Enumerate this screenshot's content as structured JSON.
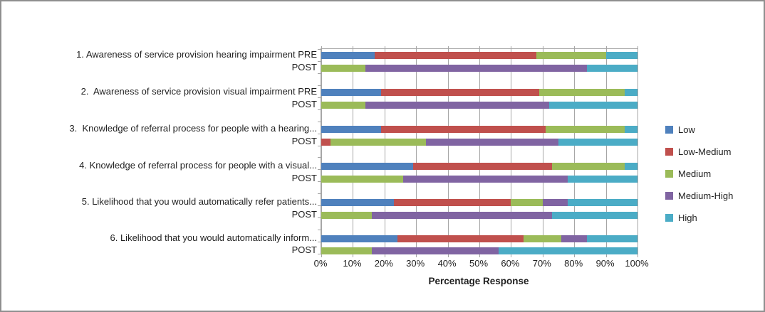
{
  "chart_data": {
    "type": "bar",
    "orientation": "horizontal",
    "stacked": true,
    "grid": true,
    "legend_position": "right",
    "xlabel": "Percentage Response",
    "xlim": [
      0,
      100
    ],
    "x_ticks": [
      "0%",
      "10%",
      "20%",
      "30%",
      "40%",
      "50%",
      "60%",
      "70%",
      "80%",
      "90%",
      "100%"
    ],
    "series": [
      {
        "name": "Low",
        "color": "#4F81BD"
      },
      {
        "name": "Low-Medium",
        "color": "#C0504D"
      },
      {
        "name": "Medium",
        "color": "#9BBB59"
      },
      {
        "name": "Medium-High",
        "color": "#8064A2"
      },
      {
        "name": "High",
        "color": "#4BACC6"
      }
    ],
    "series_order_note": "values arrays follow series order: Low, Low-Medium, Medium, Medium-High, High (percent of responses)",
    "groups": [
      {
        "pre_label": "1. Awareness of service provision hearing impairment PRE",
        "post_label": "POST",
        "pre_values": [
          17,
          51,
          22,
          0,
          10
        ],
        "post_values": [
          0,
          0,
          14,
          70,
          16
        ]
      },
      {
        "pre_label": "2.  Awareness of service provision visual impairment PRE",
        "post_label": "POST",
        "pre_values": [
          19,
          50,
          27,
          0,
          4
        ],
        "post_values": [
          0,
          0,
          14,
          58,
          28
        ]
      },
      {
        "pre_label": "3.  Knowledge of referral process for people with a hearing...",
        "post_label": "POST",
        "pre_values": [
          19,
          52,
          25,
          0,
          4
        ],
        "post_values": [
          0,
          3,
          30,
          42,
          25
        ]
      },
      {
        "pre_label": "4. Knowledge of referral process for people with a visual...",
        "post_label": "POST",
        "pre_values": [
          29,
          44,
          23,
          0,
          4
        ],
        "post_values": [
          0,
          0,
          26,
          52,
          22
        ]
      },
      {
        "pre_label": "5. Likelihood that you would automatically refer patients...",
        "post_label": "POST",
        "pre_values": [
          23,
          37,
          10,
          8,
          22
        ],
        "post_values": [
          0,
          0,
          16,
          57,
          27
        ]
      },
      {
        "pre_label": "6. Likelihood that you would automatically inform...",
        "post_label": "POST",
        "pre_values": [
          24,
          40,
          12,
          8,
          16
        ],
        "post_values": [
          0,
          0,
          16,
          40,
          44
        ]
      }
    ]
  }
}
